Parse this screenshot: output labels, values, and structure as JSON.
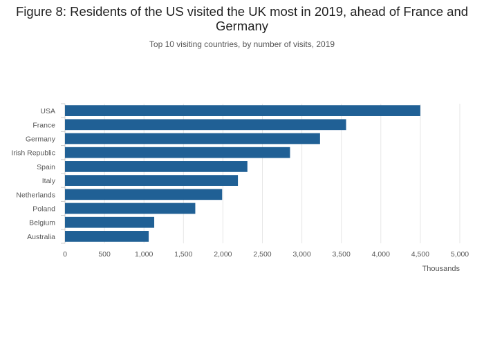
{
  "title": "Figure 8: Residents of the US visited the UK most in 2019, ahead of France and Germany",
  "subtitle": "Top 10 visiting countries, by number of visits, 2019",
  "chart_data": {
    "type": "bar",
    "orientation": "horizontal",
    "categories": [
      "USA",
      "France",
      "Germany",
      "Irish Republic",
      "Spain",
      "Italy",
      "Netherlands",
      "Poland",
      "Belgium",
      "Australia"
    ],
    "values": [
      4500,
      3560,
      3230,
      2850,
      2310,
      2190,
      1990,
      1650,
      1130,
      1060
    ],
    "xlabel": "Thousands",
    "ylabel": "",
    "xlim": [
      0,
      5000
    ],
    "xticks": [
      0,
      500,
      1000,
      1500,
      2000,
      2500,
      3000,
      3500,
      4000,
      4500,
      5000
    ],
    "xtick_labels": [
      "0",
      "500",
      "1,000",
      "1,500",
      "2,000",
      "2,500",
      "3,000",
      "3,500",
      "4,000",
      "4,500",
      "5,000"
    ],
    "bar_color": "#206095",
    "grid": true,
    "legend": "none"
  }
}
